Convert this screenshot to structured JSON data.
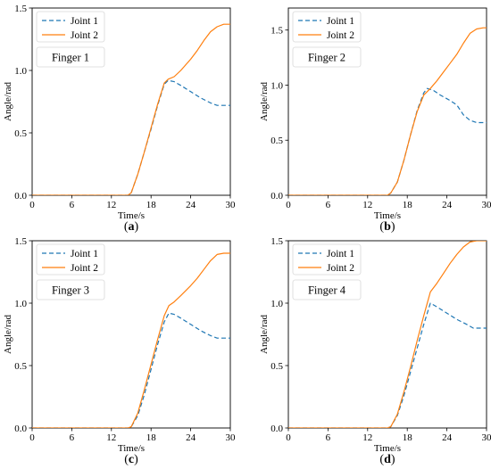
{
  "figure": {
    "colors": {
      "joint1": "#1f77b4",
      "joint2": "#ff7f0e"
    }
  },
  "chart_data": [
    {
      "type": "line",
      "panel_label": "(a)",
      "finger_label": "Finger 1",
      "xlabel": "Time/s",
      "ylabel": "Angle/rad",
      "xlim": [
        0,
        30
      ],
      "ylim": [
        0,
        1.5
      ],
      "xticks": [
        "0",
        "6",
        "12",
        "18",
        "24",
        "30"
      ],
      "yticks": [
        "0.0",
        "0.5",
        "1.0",
        "1.5"
      ],
      "grid": false,
      "legend_position": "top-left",
      "series": [
        {
          "name": "Joint 1",
          "style": "dashed",
          "x": [
            0,
            14.5,
            15,
            16,
            17,
            18,
            19,
            20,
            20.6,
            21.5,
            22.5,
            24,
            25.5,
            27,
            28,
            29,
            30
          ],
          "y": [
            0,
            0,
            0.02,
            0.17,
            0.35,
            0.53,
            0.72,
            0.89,
            0.92,
            0.91,
            0.88,
            0.83,
            0.78,
            0.74,
            0.72,
            0.72,
            0.72
          ]
        },
        {
          "name": "Joint 2",
          "style": "solid",
          "x": [
            0,
            14.5,
            15,
            16,
            17,
            18,
            19,
            20,
            20.6,
            21.5,
            22.5,
            24,
            25,
            26,
            27,
            28,
            29,
            30
          ],
          "y": [
            0,
            0,
            0.02,
            0.17,
            0.35,
            0.54,
            0.73,
            0.9,
            0.93,
            0.95,
            1.0,
            1.09,
            1.16,
            1.24,
            1.31,
            1.35,
            1.37,
            1.37
          ]
        }
      ]
    },
    {
      "type": "line",
      "panel_label": "(b)",
      "finger_label": "Finger 2",
      "xlabel": "Time/s",
      "ylabel": "Angle/rad",
      "xlim": [
        0,
        30
      ],
      "ylim": [
        0,
        1.7
      ],
      "xticks": [
        "0",
        "6",
        "12",
        "18",
        "24",
        "30"
      ],
      "yticks": [
        "0.0",
        "0.5",
        "1.0",
        "1.5"
      ],
      "grid": false,
      "legend_position": "top-left",
      "series": [
        {
          "name": "Joint 1",
          "style": "dashed",
          "x": [
            0,
            15,
            15.5,
            16.5,
            17.5,
            18.5,
            19.5,
            20.5,
            21,
            22,
            23,
            24.5,
            25.5,
            26.5,
            27.5,
            28.5,
            30
          ],
          "y": [
            0,
            0,
            0.02,
            0.12,
            0.32,
            0.55,
            0.77,
            0.93,
            0.97,
            0.95,
            0.91,
            0.86,
            0.82,
            0.73,
            0.68,
            0.66,
            0.66
          ]
        },
        {
          "name": "Joint 2",
          "style": "solid",
          "x": [
            0,
            15,
            15.5,
            16.5,
            17.5,
            18.5,
            19.5,
            20.5,
            21.5,
            22.5,
            23.5,
            24.5,
            25.5,
            26.5,
            27.5,
            28.5,
            29.5,
            30
          ],
          "y": [
            0,
            0,
            0.02,
            0.12,
            0.32,
            0.55,
            0.76,
            0.91,
            0.97,
            1.04,
            1.12,
            1.2,
            1.28,
            1.38,
            1.47,
            1.51,
            1.52,
            1.52
          ]
        }
      ]
    },
    {
      "type": "line",
      "panel_label": "(c)",
      "finger_label": "Finger 3",
      "xlabel": "Time/s",
      "ylabel": "Angle/rad",
      "xlim": [
        0,
        30
      ],
      "ylim": [
        0,
        1.5
      ],
      "xticks": [
        "0",
        "6",
        "12",
        "18",
        "24",
        "30"
      ],
      "yticks": [
        "0.0",
        "0.5",
        "1.0",
        "1.5"
      ],
      "grid": false,
      "legend_position": "top-left",
      "series": [
        {
          "name": "Joint 1",
          "style": "dashed",
          "x": [
            0,
            14.5,
            15,
            16,
            17,
            18,
            19,
            20,
            20.7,
            21.5,
            22.5,
            24,
            25.5,
            27,
            28,
            29,
            30
          ],
          "y": [
            0,
            0,
            0.01,
            0.1,
            0.27,
            0.47,
            0.67,
            0.85,
            0.92,
            0.91,
            0.88,
            0.83,
            0.78,
            0.74,
            0.72,
            0.72,
            0.72
          ]
        },
        {
          "name": "Joint 2",
          "style": "solid",
          "x": [
            0,
            14.5,
            15,
            16,
            17,
            18,
            19,
            20,
            20.7,
            21.5,
            22.5,
            24,
            25,
            26,
            27,
            28,
            29,
            30
          ],
          "y": [
            0,
            0,
            0.01,
            0.12,
            0.31,
            0.51,
            0.71,
            0.9,
            0.98,
            1.01,
            1.06,
            1.14,
            1.2,
            1.27,
            1.34,
            1.39,
            1.4,
            1.4
          ]
        }
      ]
    },
    {
      "type": "line",
      "panel_label": "(d)",
      "finger_label": "Finger 4",
      "xlabel": "Time/s",
      "ylabel": "Angle/rad",
      "xlim": [
        0,
        30
      ],
      "ylim": [
        0,
        1.5
      ],
      "xticks": [
        "0",
        "6",
        "12",
        "18",
        "24",
        "30"
      ],
      "yticks": [
        "0.0",
        "0.5",
        "1.0",
        "1.5"
      ],
      "grid": false,
      "legend_position": "top-left",
      "series": [
        {
          "name": "Joint 1",
          "style": "dashed",
          "x": [
            0,
            15,
            15.5,
            16.5,
            17.5,
            18.5,
            19.5,
            20.5,
            21.5,
            22.5,
            24,
            25.5,
            27,
            28,
            29,
            30
          ],
          "y": [
            0,
            0,
            0.01,
            0.1,
            0.26,
            0.45,
            0.64,
            0.83,
            1.0,
            0.97,
            0.92,
            0.87,
            0.83,
            0.8,
            0.8,
            0.8
          ]
        },
        {
          "name": "Joint 2",
          "style": "solid",
          "x": [
            0,
            15,
            15.5,
            16.5,
            17.5,
            18.5,
            19.5,
            20.5,
            21.5,
            22.5,
            23.5,
            24.5,
            25.5,
            26.5,
            27.5,
            28.5,
            29.5,
            30
          ],
          "y": [
            0,
            0,
            0.01,
            0.11,
            0.29,
            0.49,
            0.7,
            0.9,
            1.09,
            1.16,
            1.24,
            1.32,
            1.39,
            1.45,
            1.49,
            1.5,
            1.5,
            1.5
          ]
        }
      ]
    }
  ]
}
